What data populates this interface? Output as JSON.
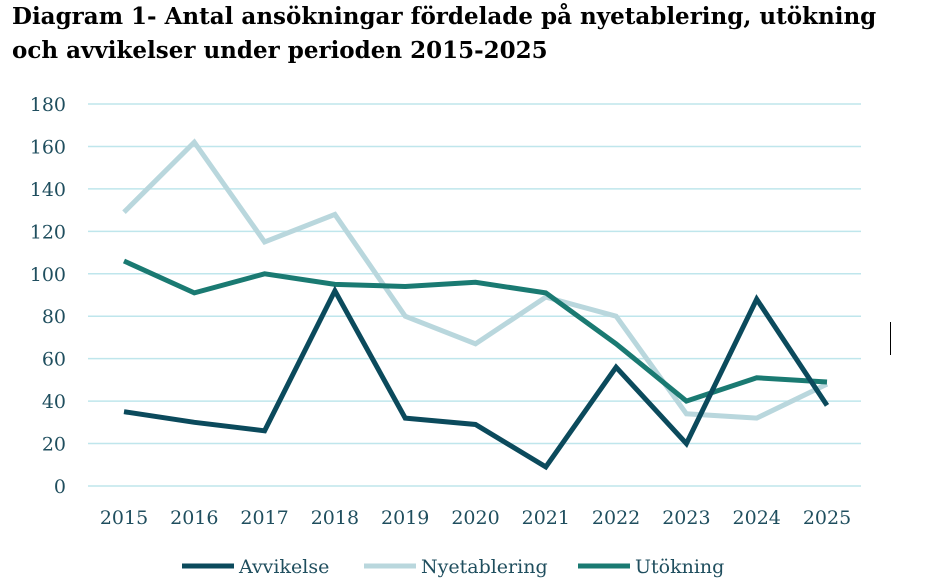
{
  "title": {
    "line1": "Diagram 1- Antal ansökningar fördelade på nyetablering, utökning",
    "line2": "och avvikelser under perioden 2015-2025"
  },
  "chart_data": {
    "type": "line",
    "title": "Diagram 1- Antal ansökningar fördelade på nyetablering, utökning och avvikelser under perioden 2015-2025",
    "xlabel": "",
    "ylabel": "",
    "categories": [
      "2015",
      "2016",
      "2017",
      "2018",
      "2019",
      "2020",
      "2021",
      "2022",
      "2023",
      "2024",
      "2025"
    ],
    "ylim": [
      0,
      180
    ],
    "yticks": [
      0,
      20,
      40,
      60,
      80,
      100,
      120,
      140,
      160,
      180
    ],
    "grid": true,
    "legend_position": "bottom",
    "series": [
      {
        "name": "Avvikelse",
        "color": "#0b4a5c",
        "values": [
          35,
          30,
          26,
          92,
          32,
          29,
          9,
          56,
          20,
          88,
          38
        ]
      },
      {
        "name": "Nyetablering",
        "color": "#b9d7dd",
        "values": [
          129,
          162,
          115,
          128,
          80,
          67,
          89,
          80,
          34,
          32,
          48
        ]
      },
      {
        "name": "Utökning",
        "color": "#1a7a72",
        "values": [
          106,
          91,
          100,
          95,
          94,
          96,
          91,
          67,
          40,
          51,
          49
        ]
      }
    ]
  }
}
